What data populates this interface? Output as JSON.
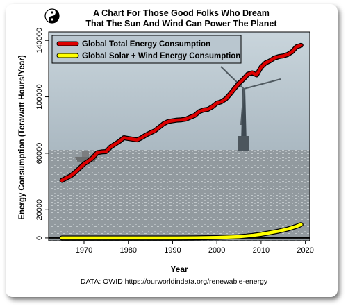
{
  "title_line1": "A Chart For Those Good Folks Who Dream",
  "title_line2": "That The Sun And Wind Can Power The Planet",
  "logo_icon": "yin-yang-icon",
  "source": "DATA: OWID https://ourworldindata.org/renewable-energy",
  "colors": {
    "total": "#dd0000",
    "solar_wind": "#ffff00",
    "outline": "#000000",
    "sky": "#b8c6cf",
    "sea": "#8f979c"
  },
  "chart_data": {
    "type": "line",
    "title": "A Chart For Those Good Folks Who Dream That The Sun And Wind Can Power The Planet",
    "xlabel": "Year",
    "ylabel": "Energy Consumption (Terawatt Hours/Year)",
    "xlim": [
      1962,
      2021
    ],
    "ylim": [
      -2000,
      146000
    ],
    "xticks": [
      1970,
      1980,
      1990,
      2000,
      2010,
      2020
    ],
    "yticks": [
      0,
      20000,
      60000,
      100000,
      140000
    ],
    "legend_position": "top-left",
    "grid": false,
    "series": [
      {
        "name": "Global Total Energy Consumption",
        "x": [
          1965,
          1966,
          1967,
          1968,
          1969,
          1970,
          1971,
          1972,
          1973,
          1974,
          1975,
          1976,
          1977,
          1978,
          1979,
          1980,
          1981,
          1982,
          1983,
          1984,
          1985,
          1986,
          1987,
          1988,
          1989,
          1990,
          1991,
          1992,
          1993,
          1994,
          1995,
          1996,
          1997,
          1998,
          1999,
          2000,
          2001,
          2002,
          2003,
          2004,
          2005,
          2006,
          2007,
          2008,
          2009,
          2010,
          2011,
          2012,
          2013,
          2014,
          2015,
          2016,
          2017,
          2018,
          2019
        ],
        "y": [
          40800,
          42500,
          44000,
          46500,
          49500,
          52500,
          54500,
          57000,
          60500,
          61000,
          61200,
          64500,
          66500,
          68500,
          71000,
          70500,
          70000,
          69500,
          71000,
          73000,
          74500,
          76000,
          78500,
          81000,
          82500,
          83000,
          83500,
          83700,
          84200,
          85500,
          86800,
          89500,
          90700,
          91200,
          93000,
          95500,
          96500,
          98500,
          102000,
          106000,
          109500,
          112500,
          116000,
          117000,
          115500,
          121000,
          124000,
          125500,
          127500,
          128500,
          129000,
          130000,
          132000,
          135500,
          136500
        ]
      },
      {
        "name": "Global Solar + Wind Energy Consumption",
        "x": [
          1965,
          1970,
          1975,
          1980,
          1985,
          1990,
          1995,
          2000,
          2005,
          2008,
          2010,
          2012,
          2014,
          2016,
          2017,
          2018,
          2019
        ],
        "y": [
          0,
          0,
          0,
          0,
          10,
          40,
          80,
          300,
          900,
          1800,
          2600,
          3700,
          4900,
          6300,
          7300,
          8300,
          9500
        ]
      }
    ]
  }
}
